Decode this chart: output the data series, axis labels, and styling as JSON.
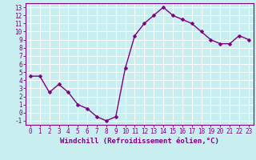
{
  "x": [
    0,
    1,
    2,
    3,
    4,
    5,
    6,
    7,
    8,
    9,
    10,
    11,
    12,
    13,
    14,
    15,
    16,
    17,
    18,
    19,
    20,
    21,
    22,
    23
  ],
  "y": [
    4.5,
    4.5,
    2.5,
    3.5,
    2.5,
    1.0,
    0.5,
    -0.5,
    -1.0,
    -0.5,
    5.5,
    9.5,
    11.0,
    12.0,
    13.0,
    12.0,
    11.5,
    11.0,
    10.0,
    9.0,
    8.5,
    8.5,
    9.5,
    9.0
  ],
  "line_color": "#800080",
  "marker": "D",
  "marker_size": 2.5,
  "line_width": 1.0,
  "xlabel": "Windchill (Refroidissement éolien,°C)",
  "xlabel_fontsize": 6.5,
  "background_color": "#c8eef0",
  "grid_color": "#ffffff",
  "tick_color": "#800080",
  "label_color": "#800080",
  "ylim": [
    -1.5,
    13.5
  ],
  "xlim": [
    -0.5,
    23.5
  ],
  "yticks": [
    -1,
    0,
    1,
    2,
    3,
    4,
    5,
    6,
    7,
    8,
    9,
    10,
    11,
    12,
    13
  ],
  "xticks": [
    0,
    1,
    2,
    3,
    4,
    5,
    6,
    7,
    8,
    9,
    10,
    11,
    12,
    13,
    14,
    15,
    16,
    17,
    18,
    19,
    20,
    21,
    22,
    23
  ],
  "tick_fontsize": 5.5,
  "spine_color": "#800080",
  "spine_linewidth": 0.8
}
